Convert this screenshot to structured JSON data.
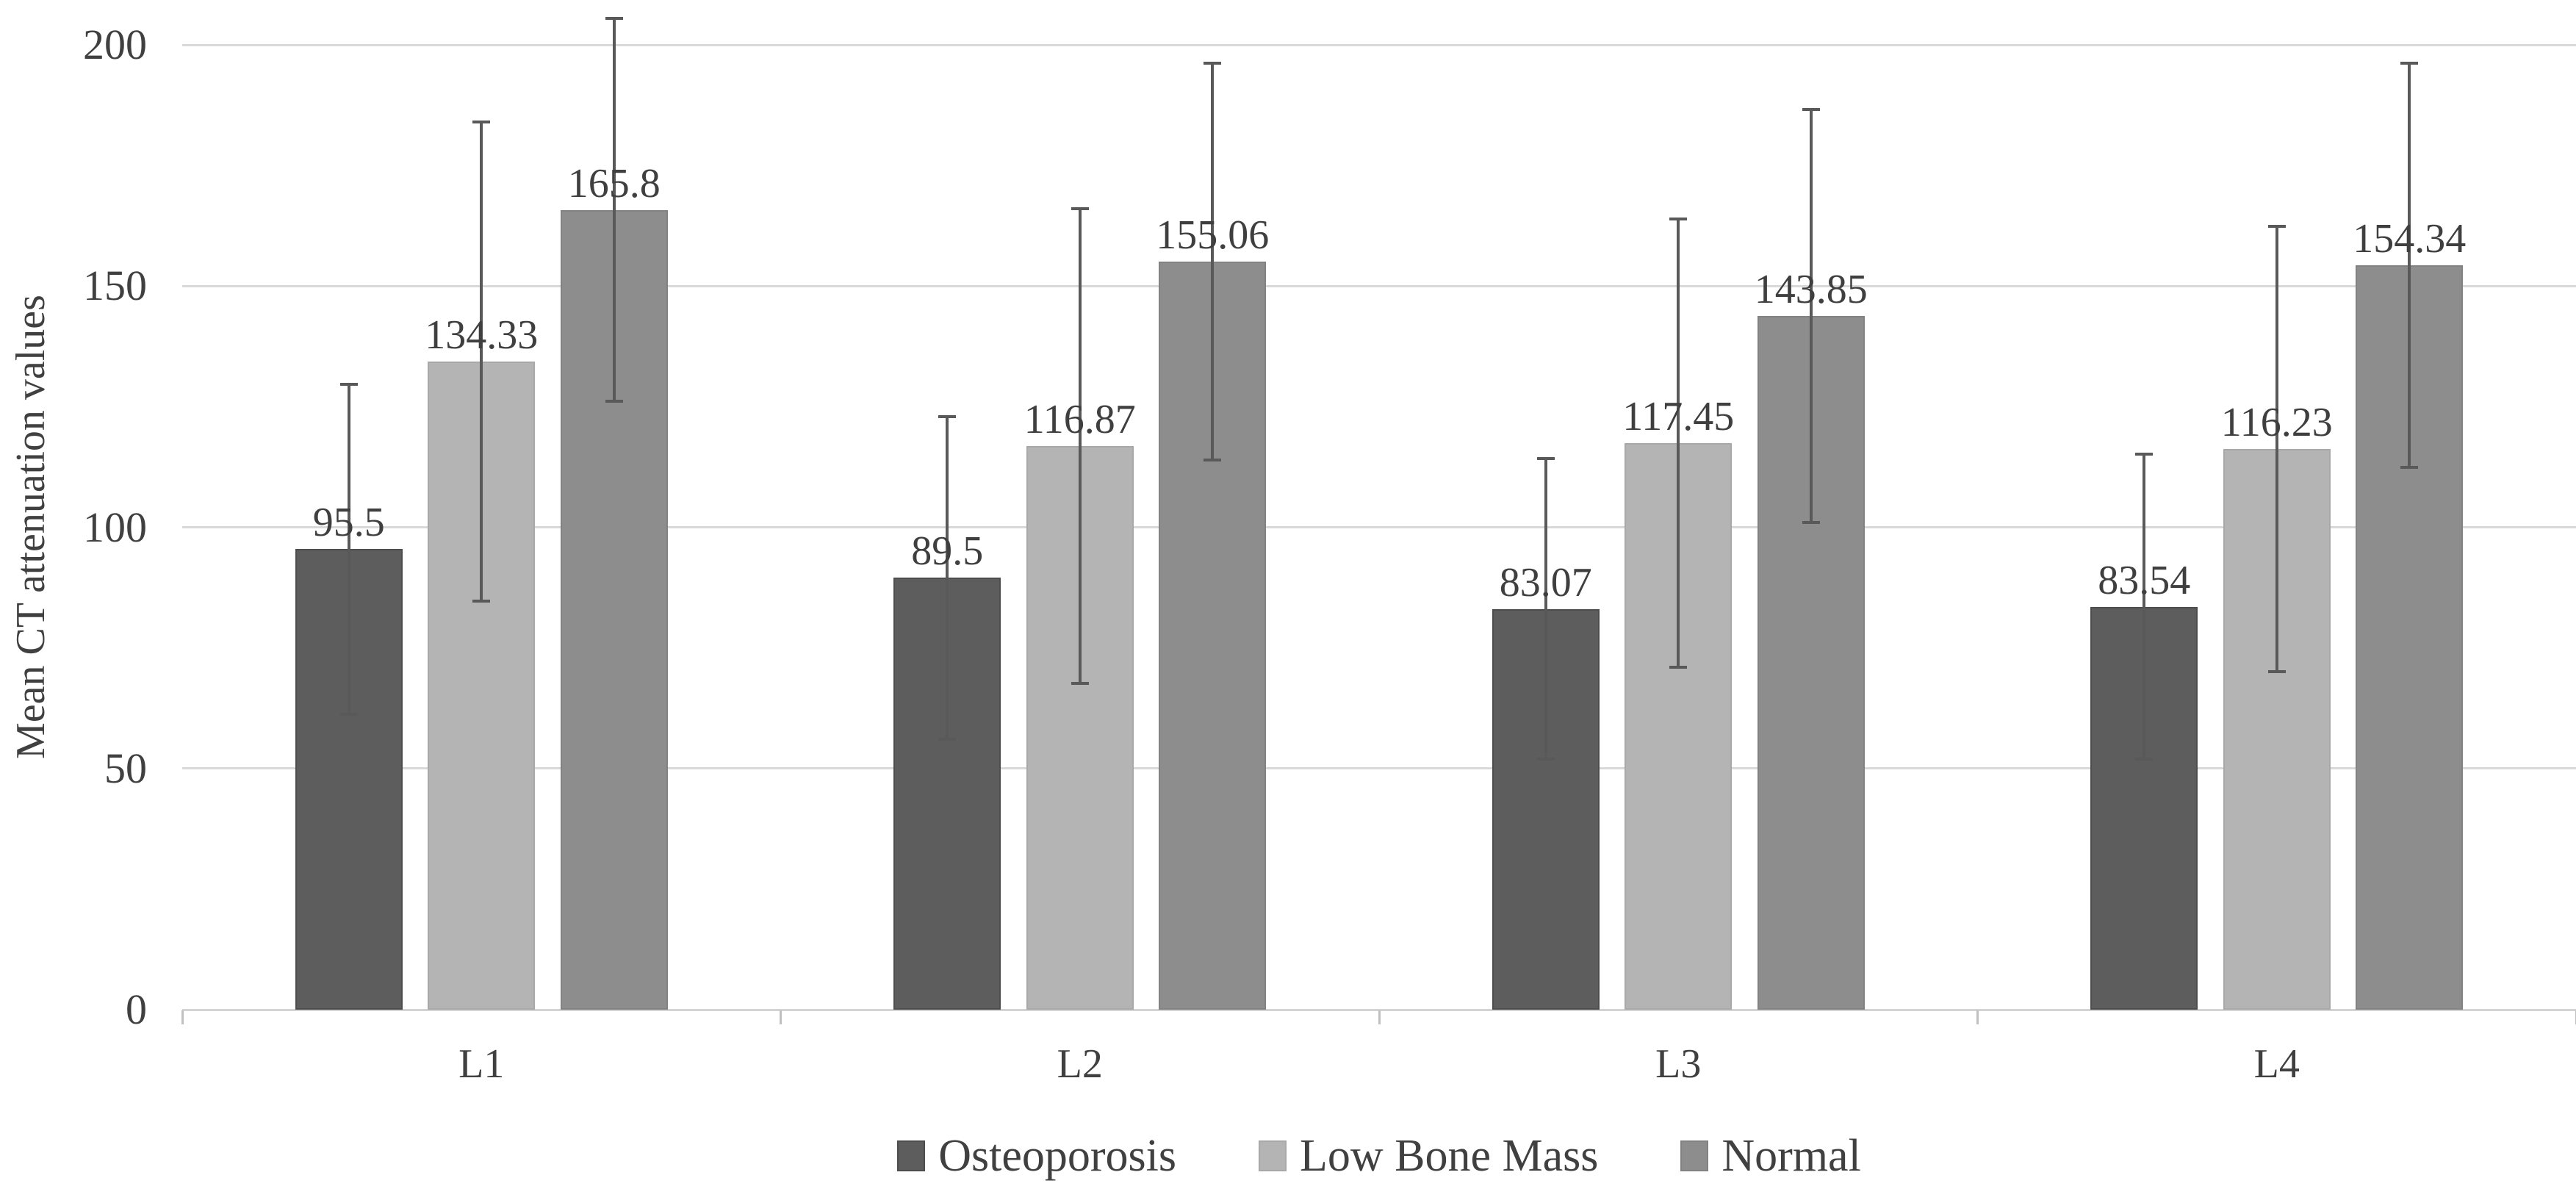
{
  "chart_data": {
    "type": "bar",
    "title": "",
    "xlabel": "",
    "ylabel": "Mean CT attenuation values",
    "categories": [
      "L1",
      "L2",
      "L3",
      "L4"
    ],
    "series": [
      {
        "name": "Osteoporosis",
        "color": "#5d5d5d",
        "border_color": "#4d4d4d",
        "values": [
          95.5,
          89.5,
          83.07,
          83.54
        ],
        "value_labels": [
          "95.5",
          "89.5",
          "83.07",
          "83.54"
        ],
        "error_bars": [
          34.2,
          33.5,
          31.2,
          31.6
        ]
      },
      {
        "name": "Low Bone Mass",
        "color": "#b4b4b4",
        "border_color": "#a8a8a8",
        "values": [
          134.33,
          116.87,
          117.45,
          116.23
        ],
        "value_labels": [
          "134.33",
          "116.87",
          "117.45",
          "116.23"
        ],
        "error_bars": [
          49.6,
          49.2,
          46.5,
          46.1
        ]
      },
      {
        "name": "Normal",
        "color": "#8d8d8d",
        "border_color": "#828282",
        "values": [
          165.8,
          155.06,
          143.85,
          154.34
        ],
        "value_labels": [
          "165.8",
          "155.06",
          "143.85",
          "154.34"
        ],
        "error_bars": [
          39.7,
          41.1,
          42.8,
          41.9
        ]
      }
    ],
    "y_axis": {
      "min": 0,
      "max": 200,
      "tick_interval": 50,
      "tick_labels": [
        "0",
        "50",
        "100",
        "150",
        "200"
      ]
    },
    "grid": true,
    "legend_position": "bottom",
    "error_bar_color": "#595959",
    "gridline_color": "#d9d9d9",
    "axis_line_color": "#d3d3d3",
    "text_color": "#404040",
    "background_color": "#ffffff"
  }
}
